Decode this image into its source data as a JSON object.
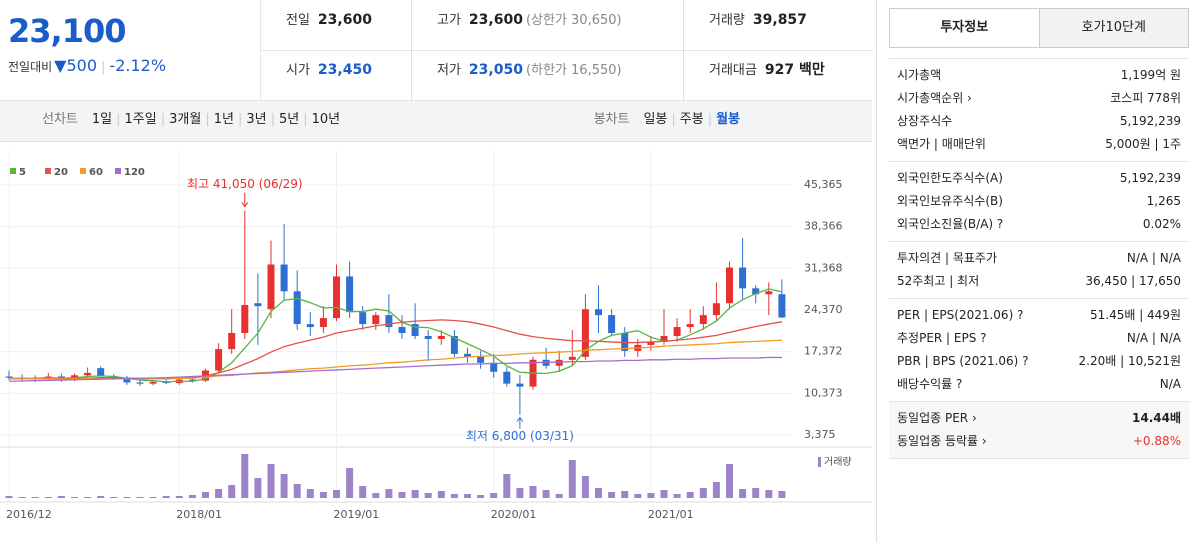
{
  "quote": {
    "price": "23,100",
    "change_label": "전일대비",
    "change": "500",
    "rate": "-2.12%"
  },
  "summary": [
    {
      "label": "전일",
      "value": "23,600"
    },
    {
      "label": "고가",
      "value": "23,600",
      "extra": "(상한가 30,650)"
    },
    {
      "label": "거래량",
      "value": "39,857"
    },
    {
      "label": "시가",
      "value": "23,450"
    },
    {
      "label": "저가",
      "value": "23,050",
      "extra": "(하한가 16,550)"
    },
    {
      "label": "거래대금",
      "value": "927 백만"
    }
  ],
  "period_tabs": {
    "label": "선차트",
    "items": [
      "1일",
      "1주일",
      "3개월",
      "1년",
      "3년",
      "5년",
      "10년"
    ]
  },
  "candle_tabs": {
    "label": "봉차트",
    "items": [
      "일봉",
      "주봉",
      "월봉"
    ]
  },
  "side_tabs": [
    "투자정보",
    "호가10단계"
  ],
  "side_groups": [
    [
      [
        "시가총액",
        "1,199억 원"
      ],
      [
        "시가총액순위 ›",
        "코스피 778위"
      ],
      [
        "상장주식수",
        "5,192,239"
      ],
      [
        "액면가 | 매매단위",
        "5,000원 | 1주"
      ]
    ],
    [
      [
        "외국인한도주식수(A)",
        "5,192,239"
      ],
      [
        "외국인보유주식수(B)",
        "1,265"
      ],
      [
        "외국인소진율(B/A) ?",
        "0.02%"
      ]
    ],
    [
      [
        "투자의견 | 목표주가",
        "N/A | N/A"
      ],
      [
        "52주최고 | 최저",
        "36,450 | 17,650"
      ]
    ],
    [
      [
        "PER | EPS(2021.06) ?",
        "51.45배 | 449원"
      ],
      [
        "추정PER | EPS ?",
        "N/A | N/A"
      ],
      [
        "PBR | BPS (2021.06) ?",
        "2.20배 | 10,521원"
      ],
      [
        "배당수익률 ?",
        "N/A"
      ]
    ],
    [
      [
        "동일업종 PER ›",
        "14.44배"
      ],
      [
        "동일업종 등락률 ›",
        "+0.88%"
      ]
    ]
  ],
  "chart_data": {
    "type": "candlestick",
    "categories": [
      "2016/12",
      null,
      null,
      null,
      null,
      null,
      null,
      null,
      null,
      null,
      null,
      null,
      null,
      "2018/01",
      null,
      null,
      null,
      null,
      null,
      null,
      null,
      null,
      null,
      null,
      null,
      "2019/01",
      null,
      null,
      null,
      null,
      null,
      null,
      null,
      null,
      null,
      null,
      null,
      "2020/01",
      null,
      null,
      null,
      null,
      null,
      null,
      null,
      null,
      null,
      null,
      null,
      "2021/01",
      null,
      null,
      null,
      null,
      null,
      null,
      null,
      null,
      null,
      null
    ],
    "open": [
      13200,
      13000,
      12800,
      12900,
      13200,
      12600,
      13400,
      14600,
      13300,
      12900,
      12200,
      12000,
      12300,
      12100,
      12700,
      12500,
      14200,
      17800,
      20500,
      25500,
      24500,
      32000,
      27500,
      22000,
      21500,
      23000,
      30000,
      24000,
      22000,
      23500,
      21500,
      22000,
      20000,
      19500,
      20000,
      17000,
      16500,
      15500,
      14000,
      12000,
      11500,
      16000,
      15000,
      16000,
      16500,
      24500,
      23500,
      20500,
      17500,
      18500,
      19000,
      20000,
      21500,
      22000,
      23500,
      25500,
      31500,
      28000,
      27000,
      27000
    ],
    "high": [
      14200,
      13600,
      13400,
      13800,
      13700,
      13700,
      14700,
      14900,
      13600,
      13300,
      12700,
      12500,
      12900,
      13000,
      13300,
      14500,
      18800,
      24500,
      41050,
      30500,
      36000,
      38800,
      31000,
      24000,
      25000,
      32000,
      32500,
      25000,
      24000,
      27000,
      23500,
      25500,
      21000,
      21000,
      21000,
      18000,
      17500,
      17000,
      14800,
      13500,
      16500,
      18000,
      17500,
      21000,
      27000,
      28500,
      24500,
      21500,
      19500,
      20000,
      24500,
      23000,
      24500,
      25000,
      29000,
      32500,
      36450,
      28500,
      29000,
      29500
    ],
    "low": [
      12600,
      12400,
      12300,
      12500,
      12300,
      12400,
      13000,
      13200,
      12600,
      11800,
      11600,
      11700,
      11900,
      11800,
      12200,
      12300,
      13800,
      17000,
      19500,
      18500,
      23000,
      26000,
      21000,
      20000,
      20500,
      22500,
      23000,
      21000,
      21000,
      20500,
      19500,
      19500,
      15800,
      18500,
      16500,
      15500,
      14500,
      13000,
      11500,
      6800,
      11000,
      14500,
      14000,
      15000,
      16000,
      20500,
      20000,
      16500,
      16500,
      17500,
      18500,
      19000,
      20500,
      21000,
      22500,
      24500,
      26000,
      25500,
      23500,
      23050
    ],
    "close": [
      13000,
      12800,
      12900,
      13200,
      12600,
      13400,
      13800,
      13300,
      12900,
      12200,
      12000,
      12300,
      12100,
      12700,
      12500,
      14200,
      17800,
      20500,
      25200,
      25000,
      32000,
      27500,
      22000,
      21500,
      23000,
      30000,
      24000,
      22000,
      23500,
      21500,
      20500,
      20000,
      19500,
      20000,
      17000,
      16500,
      15500,
      14000,
      12000,
      11500,
      16000,
      15000,
      16000,
      16500,
      24500,
      23500,
      20500,
      17500,
      18500,
      19000,
      20000,
      21500,
      22000,
      23500,
      25500,
      31500,
      28000,
      27000,
      27500,
      23100
    ],
    "up_color": "#e8312f",
    "down_color": "#2d6fd2",
    "ylim": [
      1700,
      48200
    ],
    "yticks": [
      {
        "value": 45365,
        "label": "45,365"
      },
      {
        "value": 38366,
        "label": "38,366"
      },
      {
        "value": 31368,
        "label": "31,368"
      },
      {
        "value": 24370,
        "label": "24,370"
      },
      {
        "value": 17372,
        "label": "17,372"
      },
      {
        "value": 10373,
        "label": "10,373"
      },
      {
        "value": 3375,
        "label": "3,375"
      }
    ],
    "grid": true,
    "series": [
      {
        "name": "5",
        "color": "#5ab441",
        "values": [
          12900,
          12900,
          12900,
          13000,
          12900,
          13000,
          13200,
          13300,
          13200,
          12900,
          12600,
          12500,
          12300,
          12400,
          12400,
          12800,
          13900,
          15500,
          18000,
          20500,
          24100,
          26000,
          26300,
          25600,
          24700,
          24800,
          24100,
          24100,
          24500,
          24200,
          22300,
          21500,
          21400,
          20700,
          19700,
          18700,
          17700,
          16600,
          15000,
          13900,
          13800,
          13700,
          14100,
          15000,
          17600,
          19100,
          20100,
          20500,
          20900,
          19800,
          19100,
          19300,
          20200,
          21200,
          22500,
          24700,
          26100,
          27100,
          27900,
          27400
        ]
      },
      {
        "name": "20",
        "color": "#e8504a",
        "values": [
          12800,
          12800,
          12800,
          12900,
          12900,
          12900,
          12900,
          13000,
          13000,
          12900,
          12900,
          12900,
          12800,
          12900,
          13100,
          13300,
          13800,
          14400,
          15300,
          16200,
          17300,
          18200,
          18800,
          19300,
          19800,
          20500,
          20900,
          21300,
          21700,
          22000,
          22300,
          22500,
          22600,
          22700,
          22600,
          22400,
          22000,
          21500,
          20900,
          20300,
          19900,
          19600,
          19400,
          19200,
          19200,
          19100,
          19000,
          18900,
          18900,
          19000,
          19100,
          19300,
          19500,
          19800,
          20100,
          20600,
          21100,
          21600,
          22000,
          22400
        ]
      },
      {
        "name": "60",
        "color": "#f59a25",
        "values": [
          12800,
          12800,
          12800,
          12800,
          12800,
          12800,
          12800,
          12800,
          12800,
          12800,
          12800,
          12800,
          12800,
          12900,
          12900,
          13100,
          13300,
          13400,
          13600,
          13800,
          13900,
          14100,
          14300,
          14500,
          14600,
          14800,
          15000,
          15100,
          15300,
          15500,
          15600,
          15800,
          16000,
          16100,
          16300,
          16500,
          16600,
          16700,
          16800,
          17000,
          17100,
          17200,
          17300,
          17400,
          17600,
          17700,
          17800,
          17900,
          18000,
          18100,
          18300,
          18400,
          18500,
          18600,
          18700,
          18900,
          19000,
          19100,
          19200,
          19300
        ]
      },
      {
        "name": "120",
        "color": "#a36ecc",
        "values": [
          12400,
          12450,
          12500,
          12550,
          12600,
          12650,
          12700,
          12750,
          12800,
          12850,
          12900,
          12950,
          13000,
          13100,
          13200,
          13300,
          13400,
          13500,
          13600,
          13700,
          13800,
          13900,
          14000,
          14100,
          14200,
          14300,
          14400,
          14500,
          14600,
          14700,
          14800,
          14900,
          15000,
          15100,
          15200,
          15300,
          15300,
          15400,
          15400,
          15500,
          15500,
          15600,
          15600,
          15700,
          15700,
          15800,
          15800,
          15900,
          15900,
          16000,
          16000,
          16100,
          16100,
          16200,
          16200,
          16300,
          16300,
          16300,
          16400,
          16400
        ]
      }
    ],
    "volume": {
      "name": "거래량",
      "color": "#9d83c8",
      "values": [
        2,
        1,
        1,
        1,
        2,
        1,
        1,
        2,
        1,
        1,
        1,
        1,
        2,
        2,
        3,
        6,
        9,
        13,
        44,
        20,
        34,
        24,
        14,
        9,
        6,
        8,
        30,
        12,
        5,
        9,
        6,
        8,
        5,
        7,
        4,
        4,
        3,
        5,
        24,
        10,
        12,
        8,
        4,
        38,
        22,
        10,
        6,
        7,
        4,
        5,
        8,
        4,
        6,
        10,
        16,
        34,
        9,
        10,
        8,
        7
      ]
    },
    "annotations": {
      "max": "최고 41,050 (06/29)",
      "min": "최저 6,800 (03/31)"
    }
  }
}
